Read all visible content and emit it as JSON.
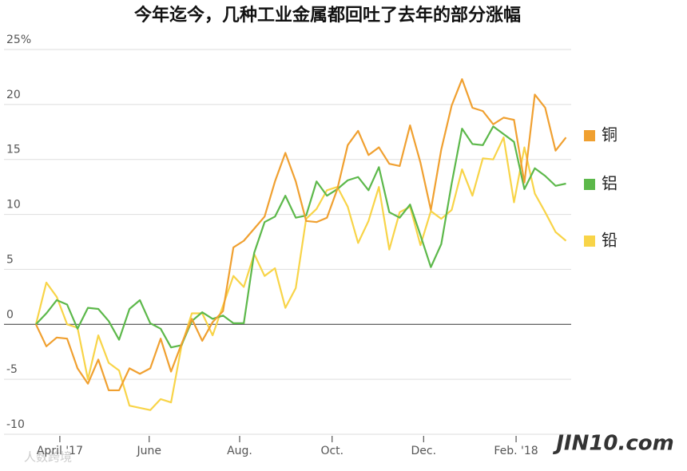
{
  "chart_data": {
    "type": "line",
    "title": "今年迄今，几种工业金属都回吐了去年的部分涨幅",
    "x": [
      0,
      1,
      2,
      3,
      4,
      5,
      6,
      7,
      8,
      9,
      10,
      11,
      12,
      13,
      14,
      15,
      16,
      17,
      18,
      19,
      20,
      21,
      22,
      23,
      24,
      25,
      26,
      27,
      28,
      29,
      30,
      31,
      32,
      33,
      34,
      35,
      36,
      37,
      38,
      39,
      40,
      41,
      42,
      43,
      44,
      45,
      46,
      47,
      48,
      49,
      50,
      51
    ],
    "series": [
      {
        "name": "铜",
        "color": "#f0a030",
        "values": [
          0,
          -2.0,
          -1.2,
          -1.3,
          -4.0,
          -5.4,
          -3.2,
          -6.0,
          -6.0,
          -4.0,
          -4.5,
          -4.0,
          -1.3,
          -4.3,
          -1.8,
          0.5,
          -1.5,
          0.2,
          1.2,
          7.0,
          7.6,
          8.7,
          9.8,
          13.0,
          15.6,
          13.0,
          9.4,
          9.3,
          9.7,
          12.3,
          16.3,
          17.6,
          15.4,
          16.1,
          14.6,
          14.4,
          18.1,
          14.7,
          10.4,
          15.9,
          19.9,
          22.3,
          19.7,
          19.4,
          18.2,
          18.8,
          18.6,
          12.9,
          20.9,
          19.7,
          15.8,
          17.0
        ]
      },
      {
        "name": "铝",
        "color": "#5cb84a",
        "values": [
          0,
          1.0,
          2.2,
          1.8,
          -0.4,
          1.5,
          1.4,
          0.3,
          -1.4,
          1.4,
          2.2,
          0.1,
          -0.4,
          -2.1,
          -1.9,
          0.3,
          1.1,
          0.5,
          0.8,
          0.1,
          0.1,
          6.5,
          9.3,
          9.8,
          11.7,
          9.7,
          9.9,
          13.0,
          11.7,
          12.3,
          13.1,
          13.4,
          12.2,
          14.3,
          10.2,
          9.7,
          10.9,
          8.1,
          5.2,
          7.3,
          12.8,
          17.8,
          16.4,
          16.3,
          18.0,
          17.3,
          16.6,
          12.3,
          14.2,
          13.5,
          12.6,
          12.8
        ]
      },
      {
        "name": "铅",
        "color": "#f8d448",
        "values": [
          0,
          3.8,
          2.5,
          0,
          -0.3,
          -5.0,
          -1.0,
          -3.5,
          -4.2,
          -7.4,
          -7.6,
          -7.8,
          -6.8,
          -7.1,
          -2.0,
          1.0,
          1.0,
          -1.0,
          1.7,
          4.4,
          3.4,
          6.4,
          4.4,
          5.1,
          1.5,
          3.3,
          9.6,
          10.5,
          12.2,
          12.5,
          10.7,
          7.4,
          9.4,
          12.5,
          6.8,
          10.2,
          10.7,
          7.2,
          10.3,
          9.6,
          10.4,
          14.1,
          11.7,
          15.1,
          15.0,
          17.0,
          11.1,
          16.1,
          11.9,
          10.2,
          8.4,
          7.6
        ]
      }
    ],
    "xlim": [
      0,
      51.5
    ],
    "xticks": [
      {
        "value": 2.3,
        "label": "April '17"
      },
      {
        "value": 10.9,
        "label": "June"
      },
      {
        "value": 19.6,
        "label": "Aug."
      },
      {
        "value": 28.5,
        "label": "Oct."
      },
      {
        "value": 37.3,
        "label": "Dec."
      },
      {
        "value": 46.2,
        "label": "Feb. '18"
      }
    ],
    "ylim": [
      -10,
      25
    ],
    "yticks": [
      -10,
      -5,
      0,
      5,
      10,
      15,
      20,
      {
        "value": 25,
        "label": "25%"
      }
    ],
    "grid": true,
    "legend": "right",
    "logo": "JIN10.com",
    "watermark": "人数跨境"
  }
}
